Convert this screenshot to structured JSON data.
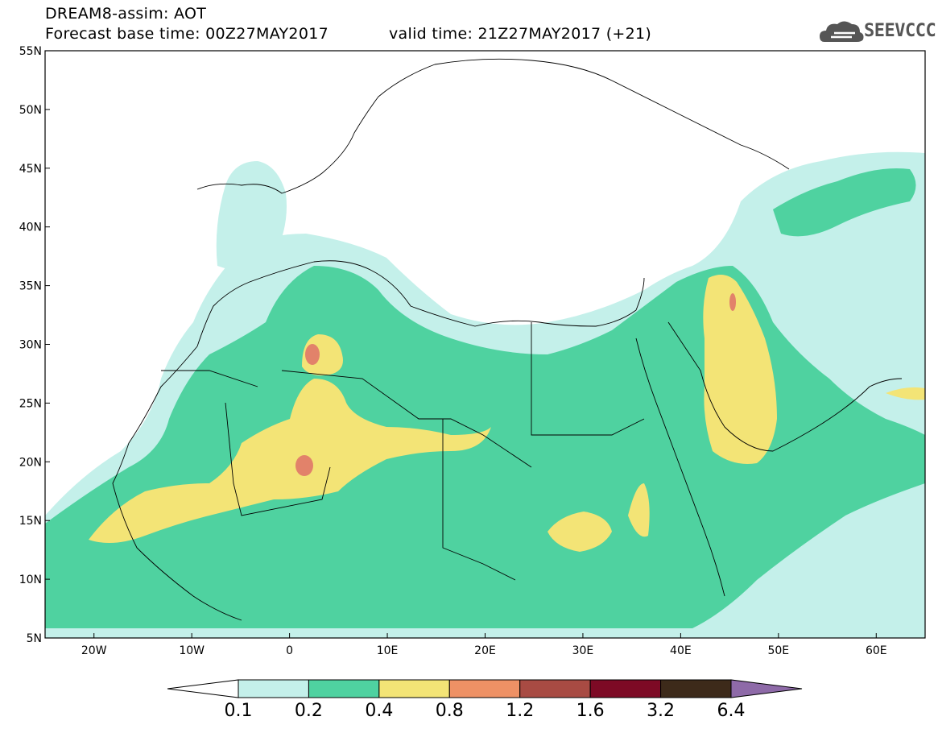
{
  "header": {
    "title": "DREAM8-assim: AOT",
    "base_time": "Forecast base time: 00Z27MAY2017",
    "valid_time": "valid time: 21Z27MAY2017 (+21)",
    "logo_text": "SEEVCCC"
  },
  "map": {
    "projection": "lat-lon",
    "lon_range": [
      -25,
      65
    ],
    "lat_range": [
      5,
      55
    ],
    "lat_ticks": [
      {
        "value": 55,
        "label": "55N"
      },
      {
        "value": 50,
        "label": "50N"
      },
      {
        "value": 45,
        "label": "45N"
      },
      {
        "value": 40,
        "label": "40N"
      },
      {
        "value": 35,
        "label": "35N"
      },
      {
        "value": 30,
        "label": "30N"
      },
      {
        "value": 25,
        "label": "25N"
      },
      {
        "value": 20,
        "label": "20N"
      },
      {
        "value": 15,
        "label": "15N"
      },
      {
        "value": 10,
        "label": "10N"
      },
      {
        "value": 5,
        "label": "5N"
      }
    ],
    "lon_ticks": [
      {
        "value": -20,
        "label": "20W"
      },
      {
        "value": -10,
        "label": "10W"
      },
      {
        "value": 0,
        "label": "0"
      },
      {
        "value": 10,
        "label": "10E"
      },
      {
        "value": 20,
        "label": "20E"
      },
      {
        "value": 30,
        "label": "30E"
      },
      {
        "value": 40,
        "label": "40E"
      },
      {
        "value": 50,
        "label": "50E"
      },
      {
        "value": 60,
        "label": "60E"
      }
    ]
  },
  "colorbar": {
    "levels": [
      "0.1",
      "0.2",
      "0.4",
      "0.8",
      "1.2",
      "1.6",
      "3.2",
      "6.4"
    ],
    "colors": [
      "#c4f0ea",
      "#4fd2a0",
      "#f3e476",
      "#ee9165",
      "#a84b43",
      "#7d0a25",
      "#3d2a1a",
      "#8e6aa8"
    ]
  },
  "colors": {
    "low": "#c4f0ea",
    "mid": "#4fd2a0",
    "high": "#f3e476",
    "vhigh": "#e2826a",
    "border": "#000000"
  }
}
